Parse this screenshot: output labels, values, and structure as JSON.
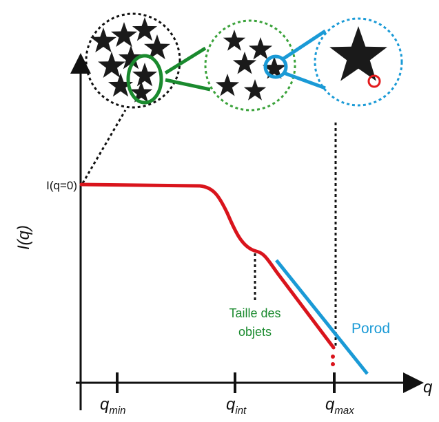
{
  "axes": {
    "y_label": "I(q)",
    "x_label": "q",
    "y_intercept_label": "I(q=0)"
  },
  "ticks": [
    {
      "symbol": "q",
      "subscript": "min"
    },
    {
      "symbol": "q",
      "subscript": "int"
    },
    {
      "symbol": "q",
      "subscript": "max"
    }
  ],
  "annotations": {
    "size": [
      "Taille des",
      "objets"
    ],
    "porod": "Porod"
  }
}
